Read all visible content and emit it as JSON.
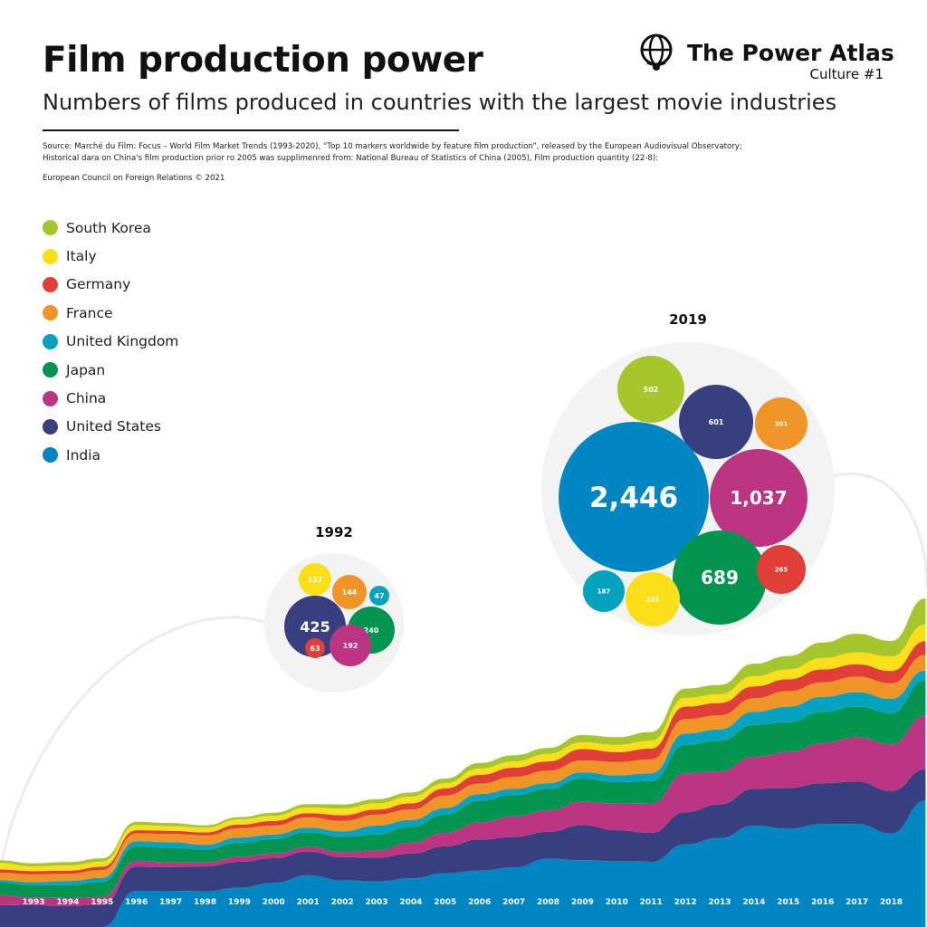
{
  "header": {
    "title": "Film production power",
    "subtitle": "Numbers of films produced in countries with the largest movie industries",
    "source_line1": "Source: Marché du Film: Focus – World Film Market Trends (1993-2020), “Top 10 markers worldwide by feature film production”, released by the European Audiovisual Observatory;",
    "source_line2": "Historical dara on China's film production prior ro 2005 was supplimenred from: National Bureau of Statistics of China (2005), Film production quantity (22-8):",
    "credit": "European Council on Foreign Relations © 2021"
  },
  "brand": {
    "name": "The Power Atlas",
    "series": "Culture #1",
    "icon": "globe-head-icon"
  },
  "chart_data": {
    "type": "area",
    "stacked": true,
    "title": "Film production power",
    "x": [
      1992,
      1993,
      1994,
      1995,
      1996,
      1997,
      1998,
      1999,
      2000,
      2001,
      2002,
      2003,
      2004,
      2005,
      2006,
      2007,
      2008,
      2009,
      2010,
      2011,
      2012,
      2013,
      2014,
      2015,
      2016,
      2017,
      2018,
      2019
    ],
    "x_tick_labels": [
      "1993",
      "1994",
      "1995",
      "1996",
      "1997",
      "1998",
      "1999",
      "2000",
      "2001",
      "2002",
      "2003",
      "2004",
      "2005",
      "2006",
      "2007",
      "2008",
      "2009",
      "2010",
      "2011",
      "2012",
      "2013",
      "2014",
      "2015",
      "2016",
      "2017",
      "2018"
    ],
    "series": [
      {
        "name": "India",
        "color": "#0086c3",
        "values": [
          0,
          0,
          0,
          0,
          700,
          700,
          690,
          760,
          850,
          1000,
          900,
          880,
          940,
          1040,
          1090,
          1150,
          1320,
          1290,
          1270,
          1260,
          1600,
          1720,
          1960,
          1900,
          1990,
          1990,
          1810,
          2446
        ]
      },
      {
        "name": "United States",
        "color": "#373f80",
        "values": [
          425,
          420,
          410,
          430,
          470,
          460,
          480,
          500,
          480,
          460,
          450,
          460,
          480,
          520,
          600,
          590,
          520,
          680,
          600,
          560,
          620,
          650,
          710,
          790,
          790,
          820,
          820,
          601
        ]
      },
      {
        "name": "China",
        "color": "#bc3583",
        "values": [
          192,
          150,
          150,
          150,
          110,
          90,
          80,
          100,
          90,
          90,
          100,
          140,
          210,
          260,
          330,
          400,
          410,
          450,
          520,
          560,
          750,
          640,
          620,
          690,
          770,
          860,
          900,
          1037
        ]
      },
      {
        "name": "Japan",
        "color": "#03954f",
        "values": [
          240,
          238,
          250,
          290,
          280,
          280,
          250,
          270,
          280,
          280,
          290,
          310,
          310,
          350,
          420,
          410,
          420,
          450,
          410,
          440,
          550,
          590,
          620,
          580,
          610,
          590,
          610,
          689
        ]
      },
      {
        "name": "United Kingdom",
        "color": "#05a3c0",
        "values": [
          47,
          60,
          80,
          80,
          100,
          110,
          90,
          100,
          90,
          90,
          110,
          170,
          130,
          130,
          130,
          120,
          110,
          120,
          130,
          150,
          220,
          220,
          250,
          300,
          290,
          280,
          270,
          187
        ]
      },
      {
        "name": "France",
        "color": "#ef9427",
        "values": [
          144,
          150,
          140,
          150,
          150,
          160,
          180,
          180,
          170,
          200,
          200,
          210,
          200,
          240,
          200,
          230,
          240,
          230,
          260,
          270,
          280,
          270,
          260,
          300,
          280,
          300,
          300,
          301
        ]
      },
      {
        "name": "Germany",
        "color": "#e03f37",
        "values": [
          63,
          63,
          60,
          63,
          60,
          60,
          60,
          70,
          90,
          80,
          110,
          100,
          120,
          140,
          170,
          180,
          180,
          220,
          190,
          210,
          240,
          240,
          230,
          230,
          250,
          240,
          240,
          265
        ]
      },
      {
        "name": "Italy",
        "color": "#fbdf1a",
        "values": [
          127,
          90,
          100,
          100,
          100,
          90,
          90,
          100,
          100,
          110,
          130,
          120,
          130,
          100,
          120,
          120,
          150,
          130,
          140,
          150,
          170,
          170,
          200,
          190,
          220,
          230,
          280,
          325
        ]
      },
      {
        "name": "South Korea",
        "color": "#a6c72c",
        "values": [
          50,
          60,
          65,
          65,
          65,
          60,
          45,
          45,
          60,
          65,
          80,
          80,
          80,
          90,
          110,
          120,
          110,
          140,
          150,
          170,
          180,
          180,
          240,
          260,
          300,
          360,
          300,
          502
        ]
      }
    ],
    "legend": [
      "South Korea",
      "Italy",
      "Germany",
      "France",
      "United Kingdom",
      "Japan",
      "China",
      "United States",
      "India"
    ],
    "legend_placement": "top-left",
    "bubbles": [
      {
        "year": "1992",
        "items": [
          {
            "country": "Italy",
            "value": "127"
          },
          {
            "country": "France",
            "value": "144"
          },
          {
            "country": "United Kingdom",
            "value": "47"
          },
          {
            "country": "United States",
            "value": "425"
          },
          {
            "country": "Japan",
            "value": "240"
          },
          {
            "country": "China",
            "value": "192"
          },
          {
            "country": "Germany",
            "value": "63"
          }
        ]
      },
      {
        "year": "2019",
        "items": [
          {
            "country": "South Korea",
            "value": "502"
          },
          {
            "country": "United States",
            "value": "601"
          },
          {
            "country": "France",
            "value": "301"
          },
          {
            "country": "India",
            "value": "2,446"
          },
          {
            "country": "China",
            "value": "1,037"
          },
          {
            "country": "Japan",
            "value": "689"
          },
          {
            "country": "Germany",
            "value": "265"
          },
          {
            "country": "United Kingdom",
            "value": "187"
          },
          {
            "country": "Italy",
            "value": "325"
          }
        ]
      }
    ]
  }
}
